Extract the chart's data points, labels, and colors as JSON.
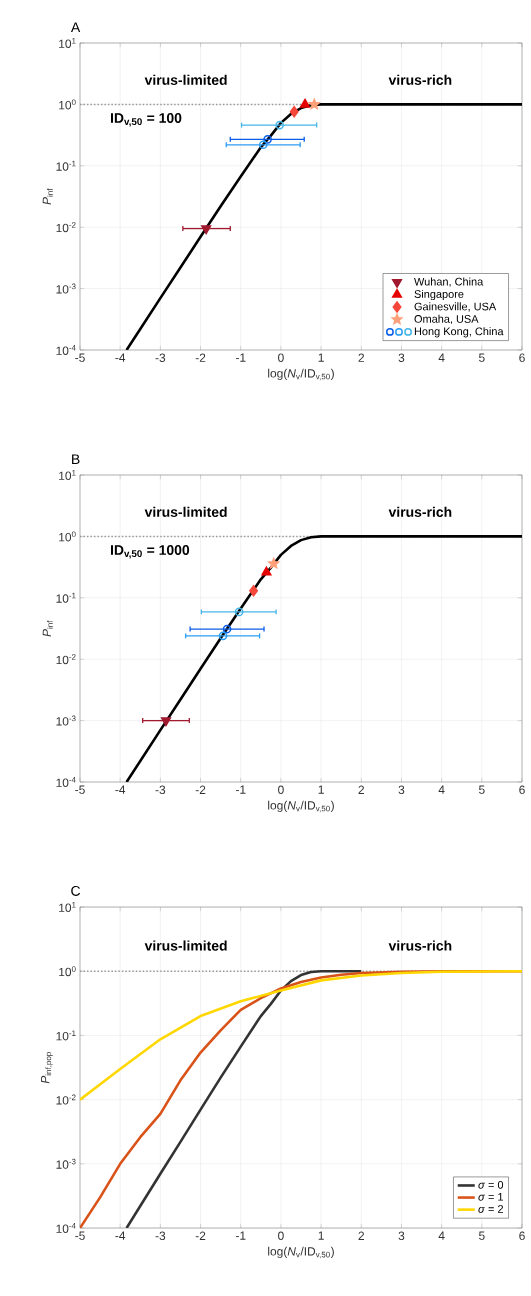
{
  "chart_data": [
    {
      "type": "line",
      "title": "A",
      "xlabel": "log(*N*$_{v}$/ID$_{v,50}$)",
      "ylabel": "*P*$_{inf}$",
      "annotations": [
        "virus-limited",
        "virus-rich",
        "ID$_{v,50}$ = 100"
      ],
      "xlim": [
        -5,
        6
      ],
      "xticks": [
        -5,
        -4,
        -3,
        -2,
        -1,
        0,
        1,
        2,
        3,
        4,
        5,
        6
      ],
      "ylim": [
        0.0001,
        10
      ],
      "yticks": [
        {
          "value": 0.0001,
          "label": "10$^{-4}$"
        },
        {
          "value": 0.001,
          "label": "10$^{-3}$"
        },
        {
          "value": 0.01,
          "label": "10$^{-2}$"
        },
        {
          "value": 0.1,
          "label": "10$^{-1}$"
        },
        {
          "value": 1,
          "label": "10$^{0}$"
        },
        {
          "value": 10,
          "label": "10$^{1}$"
        }
      ],
      "log": "y",
      "grid": true,
      "legend": "bottom right",
      "ref_lines": [
        {
          "axis": "y",
          "value": 1,
          "color": "#999999",
          "line_style": "dotted"
        }
      ],
      "series": [
        {
          "type": "line",
          "color": "#000000",
          "x": [
            -3.84,
            -3.5,
            -3,
            -2.5,
            -2,
            -1.5,
            -1,
            -0.5,
            -0.25,
            0,
            0.25,
            0.5,
            0.75,
            1,
            2,
            6
          ],
          "values": [
            0.0001,
            0.00022,
            0.0007,
            0.0022,
            0.007,
            0.022,
            0.067,
            0.2,
            0.31,
            0.5,
            0.7,
            0.87,
            0.97,
            1,
            1,
            1
          ]
        },
        {
          "type": "scatter",
          "name": "Wuhan, China",
          "color": "#a0192e",
          "marker": "triangle-down",
          "x": [
            -1.86
          ],
          "values": [
            0.0095
          ],
          "xerrors": [
            [
              -2.44,
              -1.26
            ]
          ]
        },
        {
          "type": "scatter",
          "name": "Singapore",
          "color": "#e50000",
          "marker": "triangle",
          "x": [
            0.6
          ],
          "values": [
            1.0
          ]
        },
        {
          "type": "scatter",
          "name": "Gainesville, USA",
          "color": "#f5473a",
          "marker": "diamond",
          "x": [
            0.33
          ],
          "values": [
            0.76
          ]
        },
        {
          "type": "scatter",
          "name": "Omaha, USA",
          "color": "#ffa07a",
          "marker": "star",
          "x": [
            0.83
          ],
          "values": [
            1.0
          ]
        },
        {
          "type": "scatter",
          "color": "#0a5ce6",
          "marker": "circle",
          "x": [
            -0.33
          ],
          "values": [
            0.27
          ],
          "xerrors": [
            [
              -1.26,
              0.58
            ]
          ]
        },
        {
          "type": "scatter",
          "color": "#2a9df4",
          "marker": "circle",
          "x": [
            -0.44
          ],
          "values": [
            0.22
          ],
          "xerrors": [
            [
              -1.36,
              0.48
            ]
          ]
        },
        {
          "type": "scatter",
          "name": "Hong Kong, China",
          "color": "#45b6e8",
          "marker": "circle",
          "x": [
            -0.03
          ],
          "values": [
            0.46
          ],
          "xerrors": [
            [
              -0.98,
              0.89
            ]
          ]
        }
      ]
    },
    {
      "type": "line",
      "title": "B",
      "xlabel": "log(*N*$_{v}$/ID$_{v,50}$)",
      "ylabel": "*P*$_{inf}$",
      "annotations": [
        "virus-limited",
        "virus-rich",
        "ID$_{v,50}$ = 1000"
      ],
      "xlim": [
        -5,
        6
      ],
      "xticks": [
        -5,
        -4,
        -3,
        -2,
        -1,
        0,
        1,
        2,
        3,
        4,
        5,
        6
      ],
      "ylim": [
        0.0001,
        10
      ],
      "yticks": [
        {
          "value": 0.0001,
          "label": "10$^{-4}$"
        },
        {
          "value": 0.001,
          "label": "10$^{-3}$"
        },
        {
          "value": 0.01,
          "label": "10$^{-2}$"
        },
        {
          "value": 0.1,
          "label": "10$^{-1}$"
        },
        {
          "value": 1,
          "label": "10$^{0}$"
        },
        {
          "value": 10,
          "label": "10$^{1}$"
        }
      ],
      "log": "y",
      "grid": true,
      "ref_lines": [
        {
          "axis": "y",
          "value": 1,
          "color": "#999999",
          "line_style": "dotted"
        }
      ],
      "series": [
        {
          "type": "line",
          "color": "#000000",
          "x": [
            -3.84,
            -3.5,
            -3,
            -2.5,
            -2,
            -1.5,
            -1,
            -0.5,
            -0.25,
            0,
            0.25,
            0.5,
            0.75,
            1,
            2,
            6
          ],
          "values": [
            0.0001,
            0.00022,
            0.0007,
            0.0022,
            0.007,
            0.022,
            0.067,
            0.2,
            0.31,
            0.5,
            0.7,
            0.87,
            0.97,
            1,
            1,
            1
          ]
        },
        {
          "type": "scatter",
          "color": "#a0192e",
          "marker": "triangle-down",
          "x": [
            -2.86
          ],
          "values": [
            0.001
          ],
          "xerrors": [
            [
              -3.44,
              -2.28
            ]
          ]
        },
        {
          "type": "scatter",
          "color": "#e50000",
          "marker": "triangle",
          "x": [
            -0.36
          ],
          "values": [
            0.26
          ]
        },
        {
          "type": "scatter",
          "color": "#f5473a",
          "marker": "diamond",
          "x": [
            -0.68
          ],
          "values": [
            0.13
          ]
        },
        {
          "type": "scatter",
          "color": "#ffa07a",
          "marker": "star",
          "x": [
            -0.18
          ],
          "values": [
            0.36
          ]
        },
        {
          "type": "scatter",
          "color": "#0a5ce6",
          "marker": "circle",
          "x": [
            -1.34
          ],
          "values": [
            0.031
          ],
          "xerrors": [
            [
              -2.26,
              -0.42
            ]
          ]
        },
        {
          "type": "scatter",
          "color": "#2a9df4",
          "marker": "circle",
          "x": [
            -1.44
          ],
          "values": [
            0.024
          ],
          "xerrors": [
            [
              -2.37,
              -0.53
            ]
          ]
        },
        {
          "type": "scatter",
          "color": "#45b6e8",
          "marker": "circle",
          "x": [
            -1.04
          ],
          "values": [
            0.059
          ],
          "xerrors": [
            [
              -1.98,
              -0.12
            ]
          ]
        }
      ]
    },
    {
      "type": "line",
      "title": "C",
      "xlabel": "log(*N*$_{v}$/ID$_{v,50}$)",
      "ylabel": "*P*$_{inf,pop}$",
      "annotations": [
        "virus-limited",
        "virus-rich"
      ],
      "xlim": [
        -5,
        6
      ],
      "xticks": [
        -5,
        -4,
        -3,
        -2,
        -1,
        0,
        1,
        2,
        3,
        4,
        5,
        6
      ],
      "ylim": [
        0.0001,
        10
      ],
      "yticks": [
        {
          "value": 0.0001,
          "label": "10$^{-4}$"
        },
        {
          "value": 0.001,
          "label": "10$^{-3}$"
        },
        {
          "value": 0.01,
          "label": "10$^{-2}$"
        },
        {
          "value": 0.1,
          "label": "10$^{-1}$"
        },
        {
          "value": 1,
          "label": "10$^{0}$"
        },
        {
          "value": 10,
          "label": "10$^{1}$"
        }
      ],
      "log": "y",
      "grid": true,
      "legend": "bottom right",
      "ref_lines": [
        {
          "axis": "y",
          "value": 1,
          "color": "#999999",
          "line_style": "dotted"
        }
      ],
      "series": [
        {
          "name": "*σ* = 0",
          "color": "#333333",
          "x": [
            -3.84,
            -3.5,
            -3,
            -2.5,
            -2,
            -1.5,
            -1,
            -0.5,
            -0.25,
            0,
            0.25,
            0.5,
            0.75,
            1,
            2
          ],
          "values": [
            0.0001,
            0.00022,
            0.0007,
            0.0022,
            0.007,
            0.022,
            0.067,
            0.2,
            0.31,
            0.5,
            0.7,
            0.87,
            0.97,
            1,
            1
          ]
        },
        {
          "name": "*σ* = 1",
          "color": "#d95319",
          "x": [
            -5,
            -4.5,
            -4,
            -3.5,
            -3,
            -2.5,
            -2,
            -1.5,
            -1,
            -0.5,
            0,
            0.5,
            1,
            1.5,
            2,
            3,
            4,
            6
          ],
          "values": [
            0.0001,
            0.0003,
            0.001,
            0.0026,
            0.006,
            0.02,
            0.054,
            0.12,
            0.25,
            0.38,
            0.54,
            0.68,
            0.8,
            0.88,
            0.94,
            0.98,
            0.995,
            1
          ]
        },
        {
          "name": "*σ* = 2",
          "color": "#ffd700",
          "x": [
            -5,
            -4,
            -3,
            -2,
            -1,
            0,
            1,
            2,
            3,
            4,
            5,
            6
          ],
          "values": [
            0.01,
            0.03,
            0.087,
            0.2,
            0.34,
            0.5,
            0.72,
            0.86,
            0.94,
            0.98,
            0.99,
            1
          ]
        }
      ]
    }
  ]
}
